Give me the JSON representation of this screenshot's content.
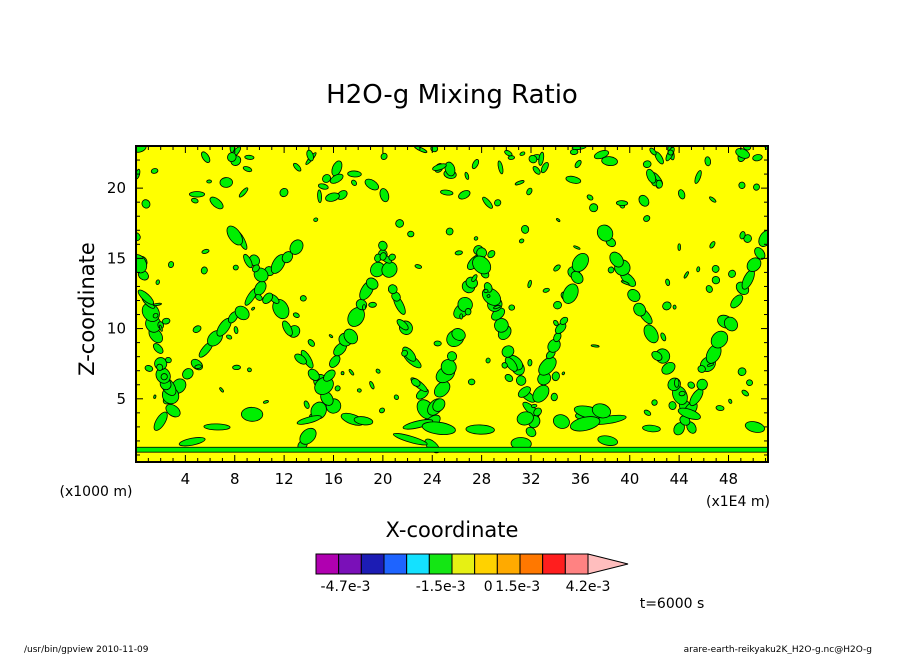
{
  "chart_data": {
    "type": "heatmap",
    "title": "H2O-g Mixing Ratio",
    "xlabel": "X-coordinate",
    "ylabel": "Z-coordinate",
    "x_unit_label": "(x1E4 m)",
    "y_unit_label": "(x1000 m)",
    "xlim": [
      0,
      51.2
    ],
    "ylim": [
      0.5,
      23
    ],
    "x_ticks": [
      4,
      8,
      12,
      16,
      20,
      24,
      28,
      32,
      36,
      40,
      44,
      48
    ],
    "y_ticks": [
      5,
      10,
      15,
      20
    ],
    "colorbar": {
      "colors": [
        "#b000b0",
        "#7a10b8",
        "#1c1cb4",
        "#1e64ff",
        "#14e1ff",
        "#14e614",
        "#e6f014",
        "#ffd200",
        "#ffaa00",
        "#ff7800",
        "#ff1e1e",
        "#ff8282",
        "#ffbebe"
      ],
      "labels": [
        "-4.7e-3",
        "-1.5e-3",
        "0",
        "1.5e-3",
        "4.2e-3"
      ]
    },
    "field_colors": {
      "background": "#ffff00",
      "anomaly": "#00f000",
      "contour": "#000000"
    },
    "time_label": "t=6000 s"
  },
  "footer": {
    "left": "/usr/bin/gpview  2010-11-09",
    "right": "arare-earth-reikyaku2K_H2O-g.nc@H2O-g"
  }
}
